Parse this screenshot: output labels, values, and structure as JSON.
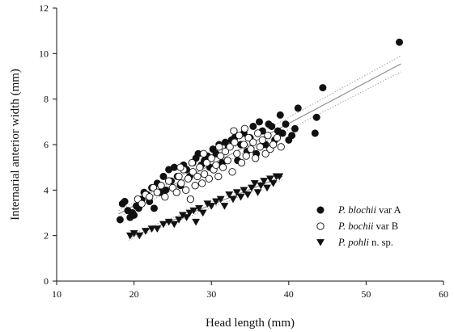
{
  "chart_data": {
    "type": "scatter",
    "xlabel": "Head length (mm)",
    "ylabel": "Internarial anterior width (mm)",
    "xlim": [
      10,
      60
    ],
    "ylim": [
      0,
      12
    ],
    "xticks": [
      10,
      20,
      30,
      40,
      50,
      60
    ],
    "yticks": [
      0,
      2,
      4,
      6,
      8,
      10,
      12
    ],
    "grid": false,
    "legend_placement": "bottom-right",
    "series": [
      {
        "label_italic": "P. blochii",
        "label_rest": " var A",
        "marker": "filled-circle",
        "color": "#111111",
        "points": [
          [
            18.2,
            2.7
          ],
          [
            18.5,
            3.4
          ],
          [
            18.8,
            3.5
          ],
          [
            19.2,
            3.1
          ],
          [
            19.5,
            2.8
          ],
          [
            19.8,
            3.0
          ],
          [
            20.0,
            2.9
          ],
          [
            20.3,
            3.3
          ],
          [
            20.6,
            3.2
          ],
          [
            21.0,
            3.6
          ],
          [
            21.3,
            3.9
          ],
          [
            21.7,
            3.8
          ],
          [
            22.0,
            3.5
          ],
          [
            22.3,
            4.1
          ],
          [
            22.6,
            3.2
          ],
          [
            23.0,
            4.3
          ],
          [
            23.4,
            3.9
          ],
          [
            23.8,
            4.6
          ],
          [
            24.1,
            4.0
          ],
          [
            24.5,
            4.9
          ],
          [
            24.8,
            4.4
          ],
          [
            25.2,
            5.0
          ],
          [
            25.6,
            4.6
          ],
          [
            26.0,
            4.2
          ],
          [
            26.4,
            5.1
          ],
          [
            26.8,
            4.9
          ],
          [
            27.2,
            4.6
          ],
          [
            27.6,
            5.2
          ],
          [
            28.0,
            5.4
          ],
          [
            28.3,
            5.6
          ],
          [
            28.7,
            5.1
          ],
          [
            29.1,
            5.3
          ],
          [
            29.5,
            5.5
          ],
          [
            29.8,
            5.0
          ],
          [
            30.2,
            5.8
          ],
          [
            30.6,
            5.6
          ],
          [
            31.0,
            6.0
          ],
          [
            31.4,
            5.2
          ],
          [
            31.8,
            6.1
          ],
          [
            32.2,
            5.9
          ],
          [
            32.6,
            6.2
          ],
          [
            33.0,
            6.3
          ],
          [
            33.4,
            5.3
          ],
          [
            33.8,
            6.0
          ],
          [
            34.2,
            6.5
          ],
          [
            34.6,
            5.7
          ],
          [
            35.0,
            6.3
          ],
          [
            35.4,
            6.8
          ],
          [
            35.8,
            5.6
          ],
          [
            36.2,
            7.0
          ],
          [
            36.6,
            6.6
          ],
          [
            37.0,
            6.0
          ],
          [
            37.4,
            6.9
          ],
          [
            37.8,
            6.8
          ],
          [
            38.2,
            6.2
          ],
          [
            38.6,
            6.6
          ],
          [
            38.9,
            7.3
          ],
          [
            39.2,
            6.5
          ],
          [
            39.6,
            6.9
          ],
          [
            40.0,
            6.2
          ],
          [
            40.4,
            6.4
          ],
          [
            40.8,
            6.7
          ],
          [
            41.2,
            7.6
          ],
          [
            43.4,
            6.5
          ],
          [
            43.6,
            7.2
          ],
          [
            44.4,
            8.5
          ],
          [
            54.3,
            10.5
          ]
        ]
      },
      {
        "label_italic": "P. bochii",
        "label_rest": " var B",
        "marker": "open-circle",
        "color": "#111111",
        "points": [
          [
            20.5,
            3.6
          ],
          [
            21.0,
            3.4
          ],
          [
            21.5,
            3.8
          ],
          [
            22.0,
            3.7
          ],
          [
            22.5,
            4.1
          ],
          [
            23.0,
            3.9
          ],
          [
            23.5,
            4.2
          ],
          [
            24.0,
            3.7
          ],
          [
            24.5,
            4.4
          ],
          [
            25.0,
            4.1
          ],
          [
            25.5,
            3.9
          ],
          [
            25.8,
            4.6
          ],
          [
            26.1,
            4.3
          ],
          [
            26.4,
            4.9
          ],
          [
            26.7,
            4.0
          ],
          [
            27.0,
            4.5
          ],
          [
            27.3,
            3.6
          ],
          [
            27.6,
            4.8
          ],
          [
            27.9,
            4.2
          ],
          [
            28.2,
            4.6
          ],
          [
            28.5,
            5.0
          ],
          [
            28.8,
            4.3
          ],
          [
            29.1,
            4.7
          ],
          [
            29.4,
            5.2
          ],
          [
            29.7,
            4.5
          ],
          [
            30.0,
            5.4
          ],
          [
            30.3,
            4.9
          ],
          [
            30.6,
            5.1
          ],
          [
            30.9,
            4.6
          ],
          [
            31.2,
            5.5
          ],
          [
            31.5,
            5.0
          ],
          [
            31.8,
            5.7
          ],
          [
            32.1,
            5.3
          ],
          [
            32.4,
            5.9
          ],
          [
            32.7,
            4.8
          ],
          [
            33.0,
            6.1
          ],
          [
            33.3,
            5.6
          ],
          [
            33.6,
            6.4
          ],
          [
            33.9,
            5.2
          ],
          [
            34.2,
            6.0
          ],
          [
            34.5,
            5.5
          ],
          [
            34.8,
            6.3
          ],
          [
            35.1,
            5.8
          ],
          [
            35.4,
            6.1
          ],
          [
            35.7,
            5.4
          ],
          [
            36.0,
            6.5
          ],
          [
            36.3,
            5.9
          ],
          [
            36.6,
            6.2
          ],
          [
            37.0,
            5.6
          ],
          [
            37.3,
            6.4
          ],
          [
            37.6,
            5.8
          ],
          [
            38.0,
            6.0
          ],
          [
            38.5,
            6.3
          ],
          [
            39.0,
            5.9
          ],
          [
            26.0,
            5.0
          ],
          [
            27.5,
            5.2
          ],
          [
            29.0,
            5.6
          ],
          [
            31.0,
            5.9
          ],
          [
            32.9,
            6.6
          ],
          [
            34.3,
            6.7
          ]
        ]
      },
      {
        "label_italic": "P. pohli",
        "label_rest": " n. sp.",
        "marker": "filled-triangle-down",
        "color": "#111111",
        "points": [
          [
            19.5,
            2.0
          ],
          [
            20.0,
            2.1
          ],
          [
            20.7,
            2.0
          ],
          [
            21.5,
            2.2
          ],
          [
            22.3,
            2.3
          ],
          [
            23.0,
            2.3
          ],
          [
            23.8,
            2.5
          ],
          [
            24.5,
            2.6
          ],
          [
            25.2,
            2.5
          ],
          [
            25.8,
            2.7
          ],
          [
            26.3,
            2.9
          ],
          [
            26.8,
            2.8
          ],
          [
            27.2,
            3.0
          ],
          [
            27.7,
            3.1
          ],
          [
            28.0,
            2.6
          ],
          [
            28.4,
            3.2
          ],
          [
            28.9,
            3.0
          ],
          [
            29.5,
            3.4
          ],
          [
            30.0,
            3.3
          ],
          [
            30.6,
            3.5
          ],
          [
            31.2,
            3.6
          ],
          [
            31.7,
            3.3
          ],
          [
            32.3,
            3.8
          ],
          [
            32.8,
            3.6
          ],
          [
            33.3,
            3.9
          ],
          [
            33.8,
            3.7
          ],
          [
            34.2,
            4.0
          ],
          [
            34.7,
            3.8
          ],
          [
            35.2,
            4.1
          ],
          [
            35.6,
            4.3
          ],
          [
            36.0,
            3.9
          ],
          [
            36.4,
            4.2
          ],
          [
            36.8,
            4.4
          ],
          [
            37.2,
            4.1
          ],
          [
            37.6,
            4.5
          ],
          [
            38.0,
            4.3
          ],
          [
            38.4,
            4.6
          ],
          [
            38.8,
            4.6
          ]
        ]
      }
    ],
    "fit_lines": [
      {
        "x": [
          18.0,
          54.5
        ],
        "y": [
          2.95,
          9.55
        ],
        "style": "solid",
        "color": "#8a8a8a"
      },
      {
        "x": [
          18.0,
          54.5
        ],
        "y": [
          2.8,
          9.2
        ],
        "style": "dotted",
        "color": "#9a9a9a"
      },
      {
        "x": [
          18.0,
          54.5
        ],
        "y": [
          3.1,
          9.9
        ],
        "style": "dotted",
        "color": "#9a9a9a"
      },
      {
        "x": [
          19.3,
          39.2
        ],
        "y": [
          1.9,
          4.6
        ],
        "style": "solid",
        "color": "#8a8a8a"
      },
      {
        "x": [
          19.3,
          39.2
        ],
        "y": [
          1.8,
          4.45
        ],
        "style": "dotted",
        "color": "#9a9a9a"
      },
      {
        "x": [
          19.3,
          39.2
        ],
        "y": [
          2.0,
          4.75
        ],
        "style": "dotted",
        "color": "#9a9a9a"
      }
    ]
  }
}
